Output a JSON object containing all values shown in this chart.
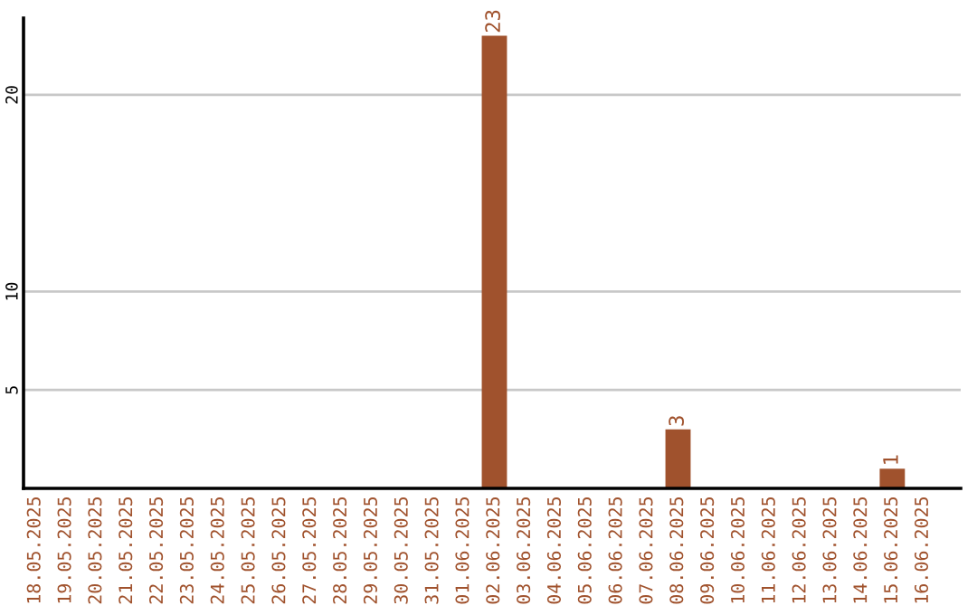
{
  "chart_data": {
    "type": "bar",
    "categories": [
      "18.05.2025",
      "19.05.2025",
      "20.05.2025",
      "21.05.2025",
      "22.05.2025",
      "23.05.2025",
      "24.05.2025",
      "25.05.2025",
      "26.05.2025",
      "27.05.2025",
      "28.05.2025",
      "29.05.2025",
      "30.05.2025",
      "31.05.2025",
      "01.06.2025",
      "02.06.2025",
      "03.06.2025",
      "04.06.2025",
      "05.06.2025",
      "06.06.2025",
      "07.06.2025",
      "08.06.2025",
      "09.06.2025",
      "10.06.2025",
      "11.06.2025",
      "12.06.2025",
      "13.06.2025",
      "14.06.2025",
      "15.06.2025",
      "16.06.2025"
    ],
    "values": [
      0,
      0,
      0,
      0,
      0,
      0,
      0,
      0,
      0,
      0,
      0,
      0,
      0,
      0,
      0,
      23,
      0,
      0,
      0,
      0,
      0,
      3,
      0,
      0,
      0,
      0,
      0,
      0,
      1,
      0
    ],
    "value_labels": [
      null,
      null,
      null,
      null,
      null,
      null,
      null,
      null,
      null,
      null,
      null,
      null,
      null,
      null,
      null,
      "23",
      null,
      null,
      null,
      null,
      null,
      "3",
      null,
      null,
      null,
      null,
      null,
      null,
      "1",
      null
    ],
    "color": "#a0522d",
    "ylim": [
      0,
      23.9
    ],
    "yticks": [
      5,
      10,
      20
    ],
    "grid": "y",
    "legend": false
  }
}
